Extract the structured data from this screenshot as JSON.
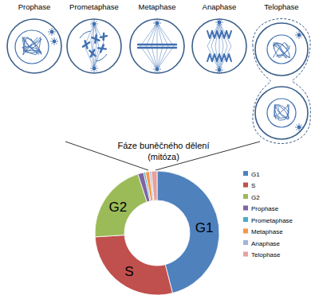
{
  "chart_data": {
    "type": "donut",
    "categories": [
      "G1",
      "S",
      "G2",
      "Prophase",
      "Prometaphase",
      "Metaphase",
      "Anaphase",
      "Telophase"
    ],
    "values": [
      46,
      28,
      21,
      1.5,
      0.5,
      1,
      0.5,
      1.5
    ],
    "colors": [
      "#4f81bd",
      "#c0504d",
      "#9bbb59",
      "#8064a2",
      "#4bacc6",
      "#f79646",
      "#a4b5d8",
      "#e6a0a0"
    ],
    "legend": "right"
  },
  "diagram": {
    "labels": [
      "Prophase",
      "Prometaphase",
      "Metaphase",
      "Anaphase",
      "Telophase"
    ],
    "caption": [
      "Fáze buněčného dělení",
      "(mitóza)"
    ]
  }
}
